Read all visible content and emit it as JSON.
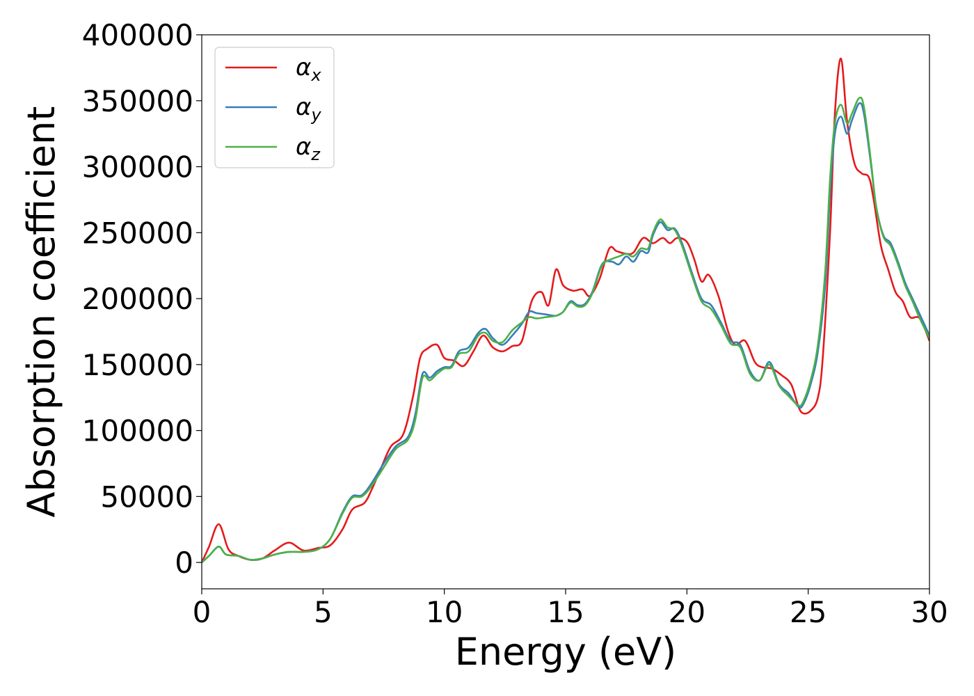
{
  "chart_data": {
    "type": "line",
    "xlabel": "Energy (eV)",
    "ylabel": "Absorption coefficient",
    "xlim": [
      0,
      30
    ],
    "ylim": [
      -20000,
      400000
    ],
    "xticks": [
      0,
      5,
      10,
      15,
      20,
      25,
      30
    ],
    "xtick_labels": [
      "0",
      "5",
      "10",
      "15",
      "20",
      "25",
      "30"
    ],
    "yticks": [
      0,
      50000,
      100000,
      150000,
      200000,
      250000,
      300000,
      350000,
      400000
    ],
    "ytick_labels": [
      "0",
      "50000",
      "100000",
      "150000",
      "200000",
      "250000",
      "300000",
      "350000",
      "400000"
    ],
    "grid": false,
    "legend_position": "top-left",
    "series": [
      {
        "name": "α",
        "subscript": "x",
        "color": "#e41a1c",
        "x": [
          0,
          0.3,
          0.7,
          1.1,
          1.5,
          2.0,
          2.5,
          3.0,
          3.6,
          4.2,
          4.8,
          5.3,
          5.8,
          6.2,
          6.7,
          7.0,
          7.4,
          7.8,
          8.3,
          8.7,
          9.0,
          9.3,
          9.7,
          10.0,
          10.4,
          10.8,
          11.2,
          11.6,
          12.0,
          12.4,
          12.8,
          13.2,
          13.6,
          14.0,
          14.3,
          14.6,
          14.9,
          15.3,
          15.7,
          16.0,
          16.4,
          16.8,
          17.1,
          17.5,
          17.8,
          18.2,
          18.6,
          19.0,
          19.3,
          19.6,
          20.0,
          20.3,
          20.6,
          20.9,
          21.3,
          21.7,
          22.0,
          22.4,
          22.8,
          23.1,
          23.5,
          23.9,
          24.3,
          24.6,
          24.8,
          25.1,
          25.4,
          25.6,
          25.9,
          26.1,
          26.35,
          26.6,
          26.9,
          27.2,
          27.5,
          27.7,
          28.0,
          28.3,
          28.6,
          28.9,
          29.2,
          29.6,
          30.0
        ],
        "y": [
          0,
          12000,
          29000,
          10000,
          5000,
          2000,
          3000,
          9000,
          15000,
          9000,
          11000,
          13000,
          25000,
          40000,
          45000,
          55000,
          72000,
          88000,
          97000,
          125000,
          155000,
          162000,
          165000,
          155000,
          153000,
          149000,
          160000,
          172000,
          163000,
          160000,
          164000,
          168000,
          198000,
          205000,
          195000,
          222000,
          210000,
          206000,
          207000,
          202000,
          215000,
          238000,
          236000,
          234000,
          235000,
          246000,
          242000,
          246000,
          242000,
          246000,
          243000,
          230000,
          213000,
          218000,
          202000,
          175000,
          165000,
          168000,
          152000,
          148000,
          147000,
          142000,
          135000,
          118000,
          113000,
          115000,
          125000,
          155000,
          250000,
          340000,
          382000,
          335000,
          303000,
          295000,
          292000,
          275000,
          240000,
          222000,
          205000,
          198000,
          186000,
          185000,
          168000
        ]
      },
      {
        "name": "α",
        "subscript": "y",
        "color": "#377eb8",
        "x": [
          0,
          0.3,
          0.7,
          1.0,
          1.5,
          2.0,
          2.5,
          3.0,
          3.6,
          4.2,
          4.8,
          5.3,
          5.8,
          6.2,
          6.6,
          7.0,
          7.5,
          8.0,
          8.5,
          8.8,
          9.1,
          9.4,
          9.7,
          10.0,
          10.3,
          10.6,
          11.0,
          11.4,
          11.7,
          12.0,
          12.4,
          12.8,
          13.2,
          13.5,
          13.8,
          14.2,
          14.6,
          14.9,
          15.2,
          15.5,
          15.8,
          16.1,
          16.5,
          16.9,
          17.2,
          17.5,
          17.8,
          18.1,
          18.4,
          18.6,
          18.9,
          19.2,
          19.5,
          19.8,
          20.2,
          20.6,
          21.0,
          21.4,
          21.8,
          22.2,
          22.6,
          23.0,
          23.4,
          23.8,
          24.2,
          24.6,
          24.8,
          25.1,
          25.4,
          25.7,
          25.9,
          26.1,
          26.35,
          26.6,
          26.8,
          27.1,
          27.3,
          27.6,
          27.8,
          28.1,
          28.4,
          28.7,
          29.0,
          29.3,
          29.6,
          30.0
        ],
        "y": [
          0,
          5000,
          12000,
          6000,
          5000,
          2000,
          3000,
          6000,
          8000,
          8000,
          10000,
          18000,
          38000,
          50000,
          51000,
          60000,
          75000,
          88000,
          95000,
          112000,
          143000,
          140000,
          145000,
          148000,
          149000,
          160000,
          163000,
          174000,
          177000,
          170000,
          165000,
          172000,
          181000,
          190000,
          189000,
          188000,
          187000,
          190000,
          198000,
          195000,
          196000,
          205000,
          226000,
          228000,
          226000,
          232000,
          228000,
          236000,
          235000,
          248000,
          258000,
          252000,
          253000,
          242000,
          220000,
          200000,
          195000,
          182000,
          168000,
          165000,
          145000,
          138000,
          152000,
          135000,
          128000,
          118000,
          120000,
          135000,
          160000,
          210000,
          280000,
          325000,
          338000,
          325000,
          335000,
          348000,
          340000,
          300000,
          270000,
          248000,
          242000,
          228000,
          212000,
          200000,
          188000,
          172000
        ]
      },
      {
        "name": "α",
        "subscript": "z",
        "color": "#4daf4a",
        "x": [
          0,
          0.3,
          0.7,
          1.0,
          1.5,
          2.0,
          2.5,
          3.0,
          3.6,
          4.2,
          4.8,
          5.3,
          5.8,
          6.2,
          6.6,
          7.0,
          7.5,
          8.0,
          8.5,
          8.8,
          9.1,
          9.4,
          9.7,
          10.0,
          10.3,
          10.6,
          11.0,
          11.4,
          11.7,
          12.0,
          12.4,
          12.8,
          13.2,
          13.5,
          13.8,
          14.2,
          14.6,
          14.9,
          15.2,
          15.5,
          15.8,
          16.1,
          16.5,
          16.9,
          17.2,
          17.5,
          17.8,
          18.1,
          18.4,
          18.6,
          18.9,
          19.2,
          19.5,
          19.8,
          20.2,
          20.6,
          21.0,
          21.4,
          21.8,
          22.2,
          22.6,
          23.0,
          23.4,
          23.8,
          24.2,
          24.6,
          24.8,
          25.1,
          25.4,
          25.7,
          25.9,
          26.1,
          26.35,
          26.6,
          26.8,
          27.1,
          27.3,
          27.6,
          27.8,
          28.1,
          28.4,
          28.7,
          29.0,
          29.3,
          29.6,
          30.0
        ],
        "y": [
          0,
          5000,
          12000,
          6000,
          5000,
          2000,
          3000,
          6000,
          8000,
          8000,
          10000,
          18000,
          37000,
          49000,
          50000,
          58000,
          72000,
          86000,
          93000,
          108000,
          140000,
          138000,
          143000,
          147000,
          148000,
          158000,
          160000,
          172000,
          174000,
          168000,
          167000,
          176000,
          182000,
          186000,
          185000,
          186000,
          187000,
          190000,
          197000,
          194000,
          195000,
          204000,
          225000,
          230000,
          232000,
          234000,
          232000,
          238000,
          238000,
          250000,
          260000,
          254000,
          252000,
          240000,
          218000,
          198000,
          192000,
          180000,
          166000,
          163000,
          143000,
          138000,
          150000,
          134000,
          126000,
          119000,
          122000,
          138000,
          165000,
          220000,
          290000,
          333000,
          347000,
          333000,
          340000,
          352000,
          345000,
          302000,
          270000,
          247000,
          240000,
          226000,
          210000,
          198000,
          185000,
          170000
        ]
      }
    ]
  }
}
